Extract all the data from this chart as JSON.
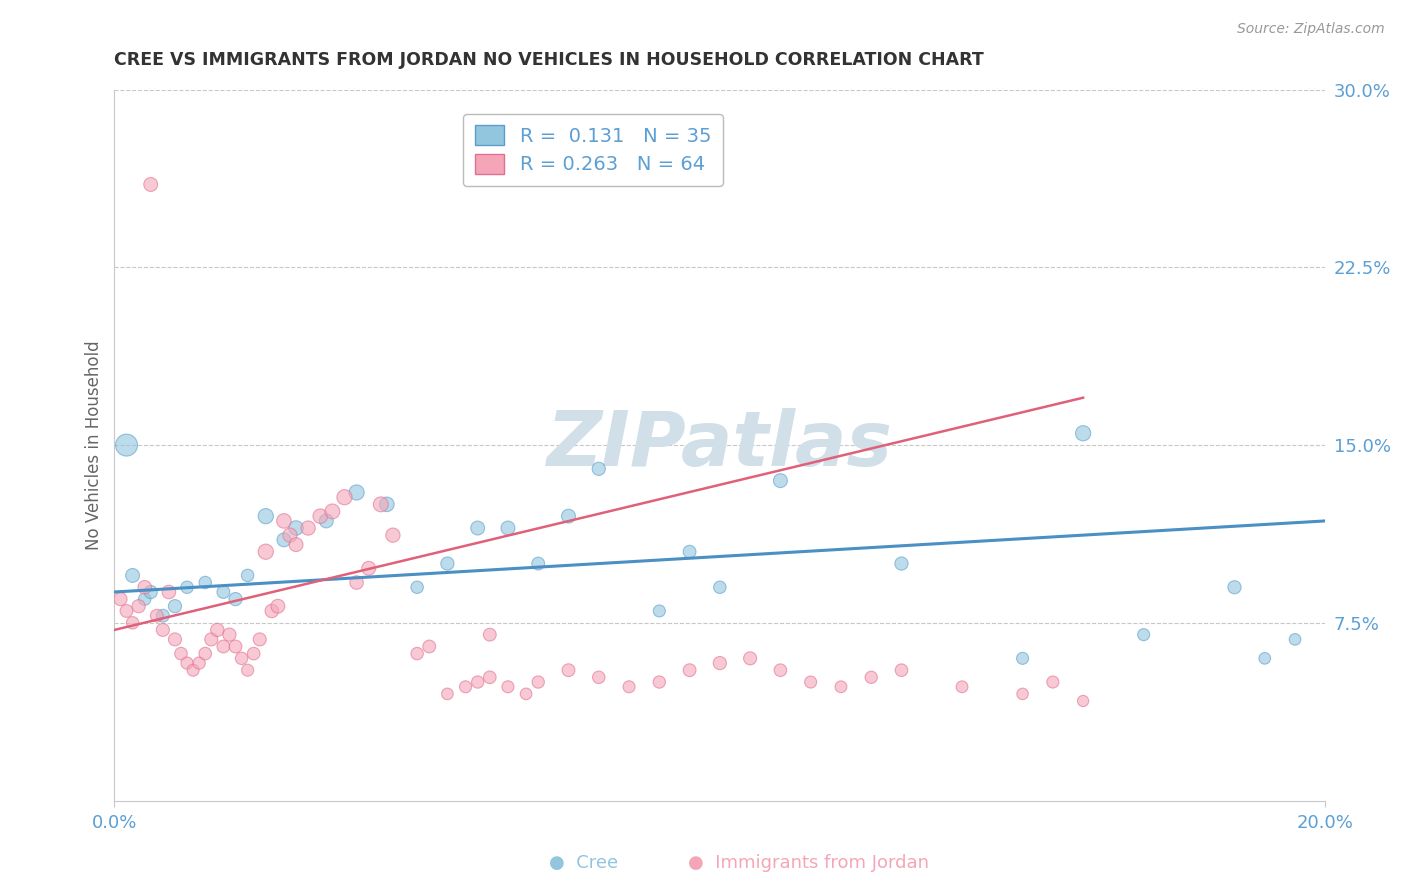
{
  "title": "CREE VS IMMIGRANTS FROM JORDAN NO VEHICLES IN HOUSEHOLD CORRELATION CHART",
  "source": "Source: ZipAtlas.com",
  "ylabel": "No Vehicles in Household",
  "xlim": [
    0.0,
    0.2
  ],
  "ylim": [
    0.0,
    0.3
  ],
  "yticks_right": [
    0.075,
    0.15,
    0.225,
    0.3
  ],
  "ytick_labels_right": [
    "7.5%",
    "15.0%",
    "22.5%",
    "30.0%"
  ],
  "cree_R": 0.131,
  "cree_N": 35,
  "jordan_R": 0.263,
  "jordan_N": 64,
  "cree_color": "#92c5de",
  "jordan_color": "#f4a6b8",
  "cree_edge_color": "#5b9ec9",
  "jordan_edge_color": "#e07090",
  "cree_line_color": "#4a90c4",
  "jordan_line_color": "#e0607a",
  "background_color": "#ffffff",
  "grid_color": "#c8c8c8",
  "watermark": "ZIPatlas",
  "watermark_color": "#d0dfe8",
  "tick_label_color": "#5b9fd4",
  "title_color": "#333333",
  "axis_label_color": "#666666",
  "cree_scatter_x": [
    0.002,
    0.003,
    0.005,
    0.006,
    0.008,
    0.01,
    0.012,
    0.015,
    0.018,
    0.02,
    0.022,
    0.025,
    0.028,
    0.03,
    0.035,
    0.04,
    0.045,
    0.05,
    0.055,
    0.06,
    0.065,
    0.07,
    0.075,
    0.08,
    0.09,
    0.095,
    0.1,
    0.11,
    0.13,
    0.15,
    0.16,
    0.17,
    0.185,
    0.19,
    0.195
  ],
  "cree_scatter_y": [
    0.15,
    0.095,
    0.085,
    0.088,
    0.078,
    0.082,
    0.09,
    0.092,
    0.088,
    0.085,
    0.095,
    0.12,
    0.11,
    0.115,
    0.118,
    0.13,
    0.125,
    0.09,
    0.1,
    0.115,
    0.115,
    0.1,
    0.12,
    0.14,
    0.08,
    0.105,
    0.09,
    0.135,
    0.1,
    0.06,
    0.155,
    0.07,
    0.09,
    0.06,
    0.068
  ],
  "cree_scatter_s": [
    250,
    100,
    80,
    90,
    85,
    90,
    80,
    80,
    85,
    90,
    80,
    120,
    100,
    110,
    100,
    120,
    110,
    80,
    90,
    100,
    100,
    85,
    100,
    90,
    75,
    85,
    80,
    100,
    90,
    75,
    120,
    75,
    90,
    70,
    70
  ],
  "jordan_scatter_x": [
    0.001,
    0.002,
    0.003,
    0.004,
    0.005,
    0.006,
    0.007,
    0.008,
    0.009,
    0.01,
    0.011,
    0.012,
    0.013,
    0.014,
    0.015,
    0.016,
    0.017,
    0.018,
    0.019,
    0.02,
    0.021,
    0.022,
    0.023,
    0.024,
    0.025,
    0.026,
    0.027,
    0.028,
    0.029,
    0.03,
    0.032,
    0.034,
    0.036,
    0.038,
    0.04,
    0.042,
    0.044,
    0.046,
    0.05,
    0.052,
    0.055,
    0.058,
    0.06,
    0.062,
    0.065,
    0.068,
    0.07,
    0.075,
    0.08,
    0.085,
    0.09,
    0.095,
    0.1,
    0.105,
    0.11,
    0.115,
    0.12,
    0.125,
    0.13,
    0.14,
    0.15,
    0.155,
    0.16,
    0.062
  ],
  "jordan_scatter_y": [
    0.085,
    0.08,
    0.075,
    0.082,
    0.09,
    0.26,
    0.078,
    0.072,
    0.088,
    0.068,
    0.062,
    0.058,
    0.055,
    0.058,
    0.062,
    0.068,
    0.072,
    0.065,
    0.07,
    0.065,
    0.06,
    0.055,
    0.062,
    0.068,
    0.105,
    0.08,
    0.082,
    0.118,
    0.112,
    0.108,
    0.115,
    0.12,
    0.122,
    0.128,
    0.092,
    0.098,
    0.125,
    0.112,
    0.062,
    0.065,
    0.045,
    0.048,
    0.05,
    0.052,
    0.048,
    0.045,
    0.05,
    0.055,
    0.052,
    0.048,
    0.05,
    0.055,
    0.058,
    0.06,
    0.055,
    0.05,
    0.048,
    0.052,
    0.055,
    0.048,
    0.045,
    0.05,
    0.042,
    0.07
  ],
  "jordan_scatter_s": [
    90,
    85,
    80,
    90,
    95,
    100,
    85,
    88,
    95,
    88,
    82,
    78,
    75,
    78,
    82,
    88,
    92,
    85,
    90,
    85,
    80,
    75,
    82,
    88,
    120,
    95,
    100,
    110,
    105,
    100,
    105,
    110,
    115,
    120,
    95,
    100,
    115,
    105,
    80,
    85,
    70,
    75,
    78,
    82,
    75,
    70,
    78,
    85,
    80,
    75,
    78,
    85,
    90,
    88,
    82,
    75,
    72,
    78,
    82,
    72,
    68,
    75,
    65,
    85
  ],
  "cree_line_x": [
    0.0,
    0.2
  ],
  "cree_line_y": [
    0.088,
    0.118
  ],
  "jordan_line_x": [
    0.0,
    0.16
  ],
  "jordan_line_y": [
    0.072,
    0.17
  ]
}
